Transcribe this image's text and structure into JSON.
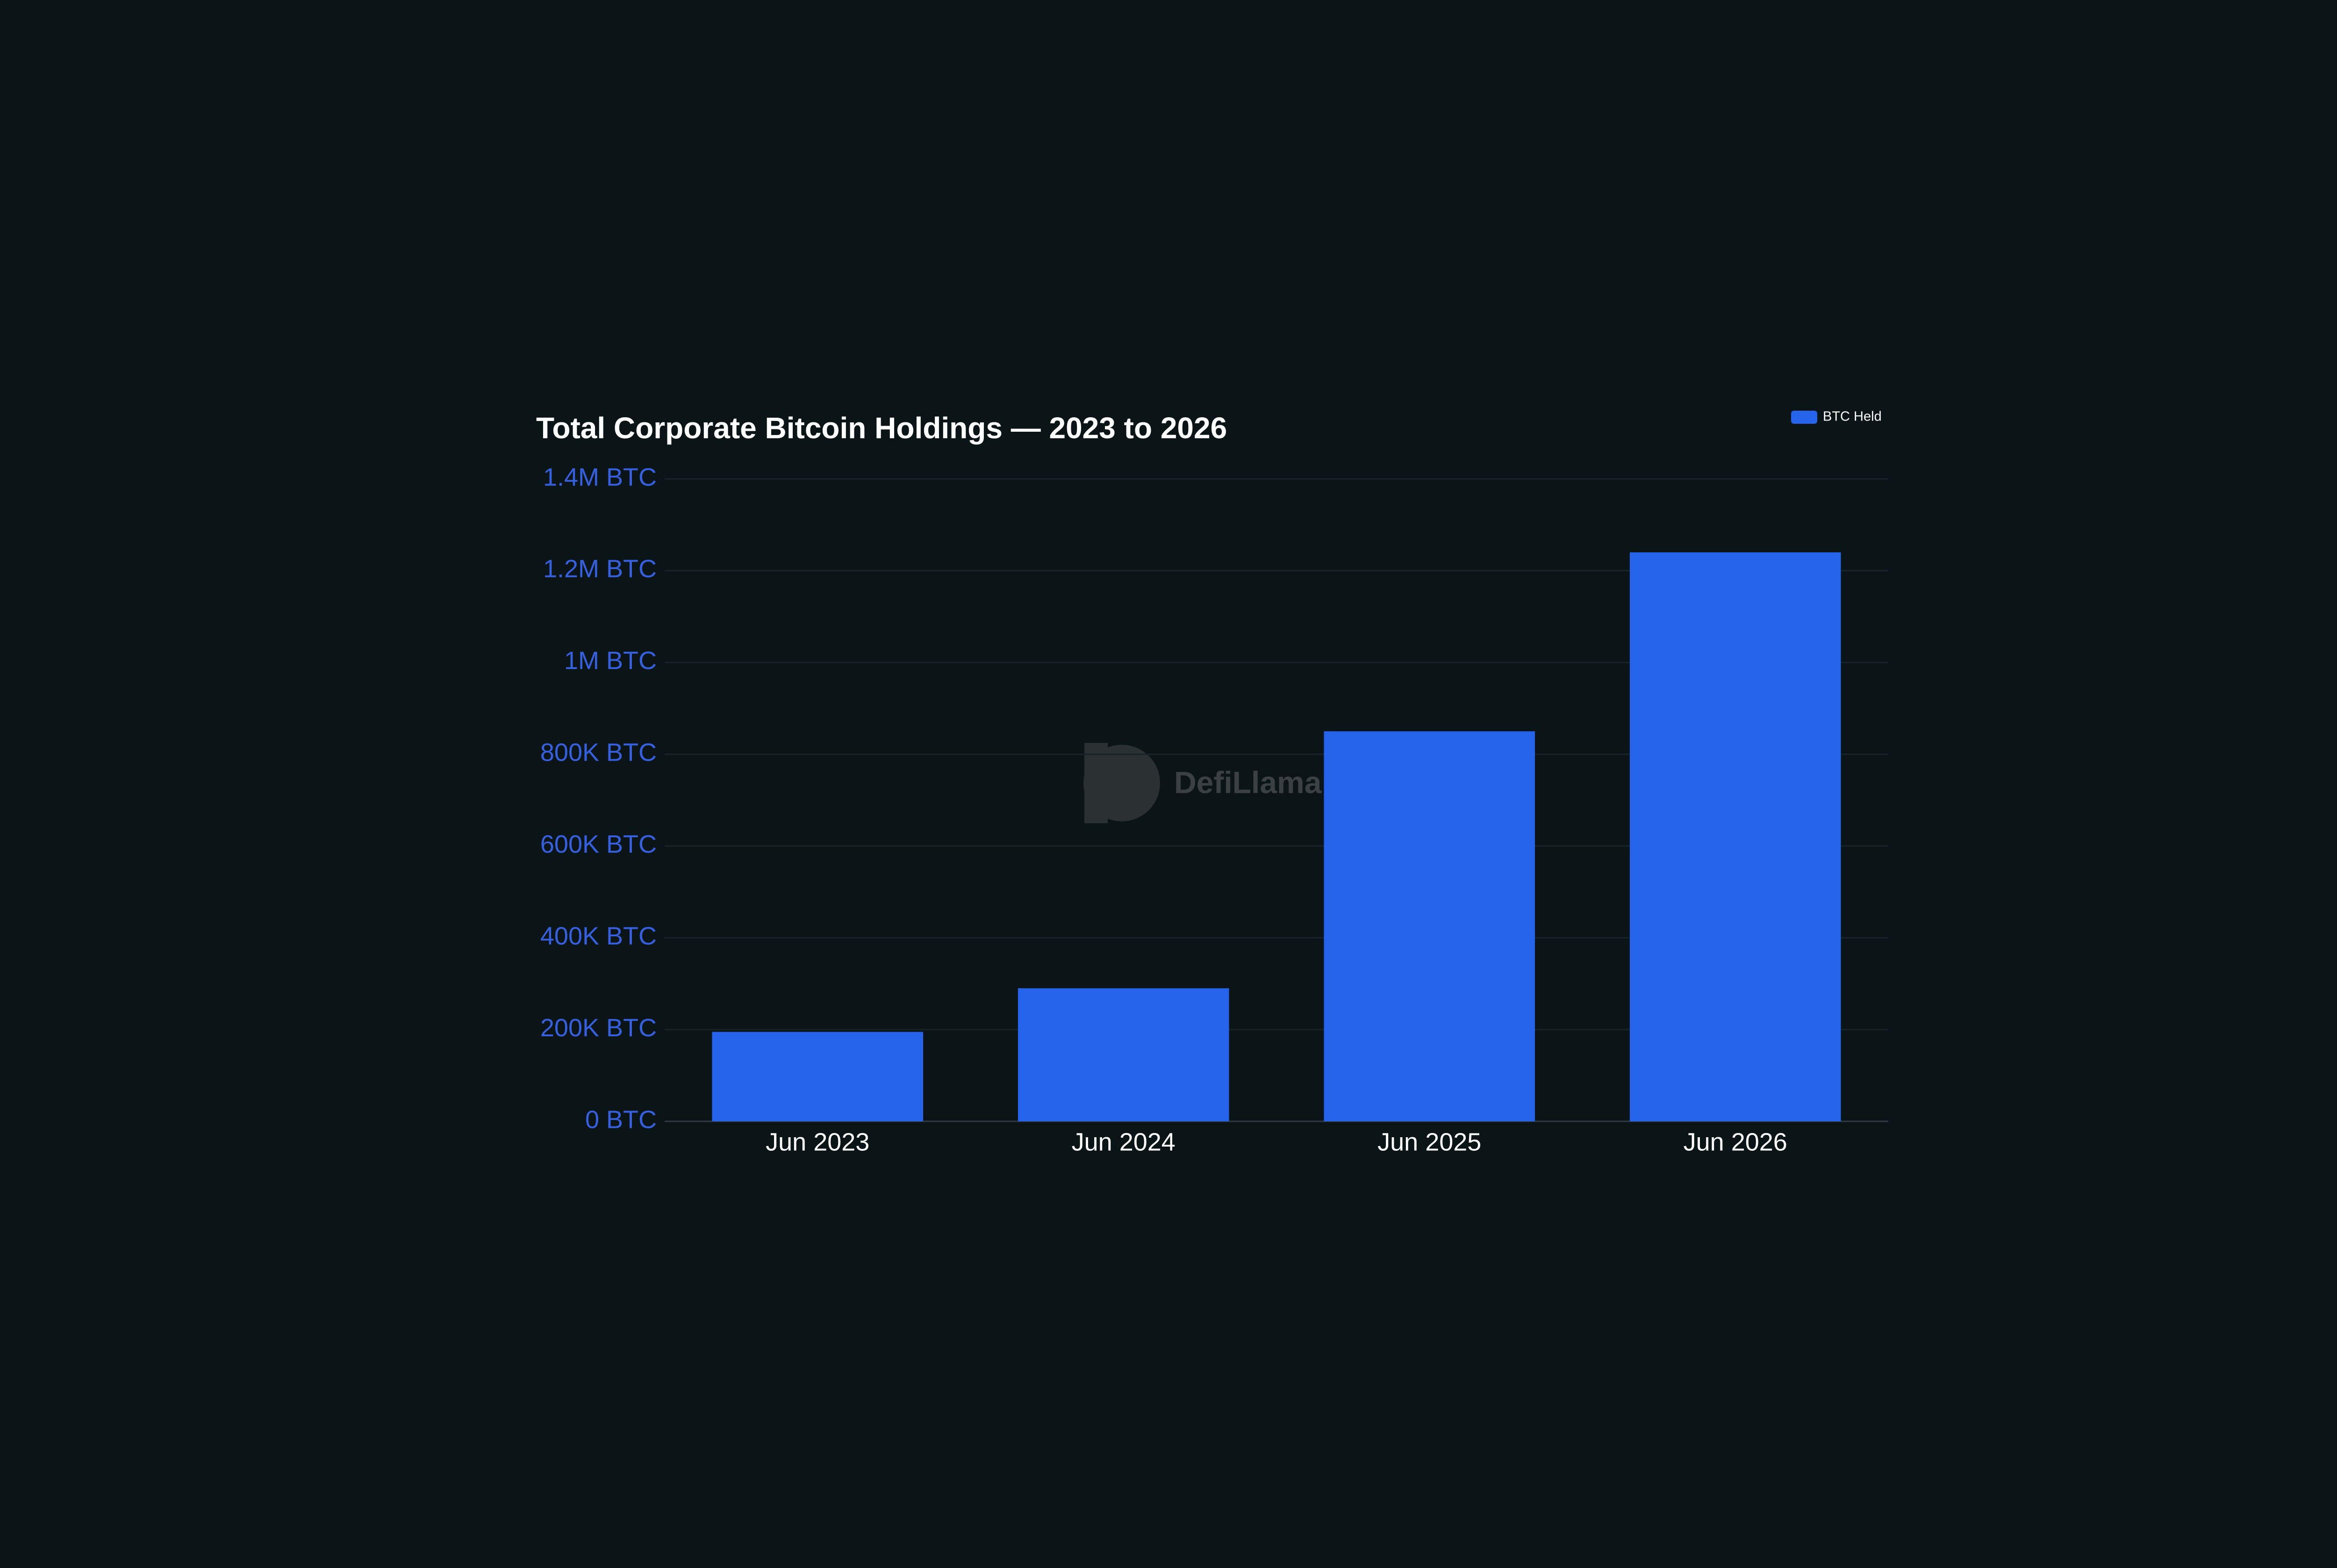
{
  "chart_data": {
    "type": "bar",
    "title": "Total Corporate Bitcoin Holdings — 2023 to 2026",
    "categories": [
      "Jun 2023",
      "Jun 2024",
      "Jun 2025",
      "Jun 2026"
    ],
    "series": [
      {
        "name": "BTC Held",
        "color": "#2563eb",
        "values": [
          195000,
          290000,
          850000,
          1240000
        ]
      }
    ],
    "ylim": [
      0,
      1400000
    ],
    "yticks": [
      {
        "value": 0,
        "label": "0 BTC"
      },
      {
        "value": 200000,
        "label": "200K BTC"
      },
      {
        "value": 400000,
        "label": "400K BTC"
      },
      {
        "value": 600000,
        "label": "600K BTC"
      },
      {
        "value": 800000,
        "label": "800K BTC"
      },
      {
        "value": 1000000,
        "label": "1M BTC"
      },
      {
        "value": 1200000,
        "label": "1.2M BTC"
      },
      {
        "value": 1400000,
        "label": "1.4M BTC"
      }
    ],
    "grid": true,
    "legend": "top-right",
    "watermark": "DefiLlama"
  }
}
